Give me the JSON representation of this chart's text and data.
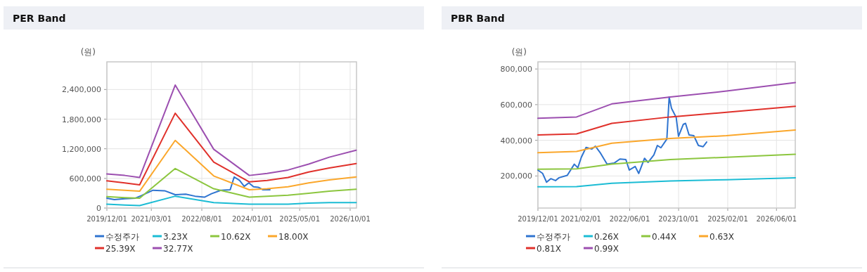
{
  "chart_data": [
    {
      "type": "line",
      "title": "PER Band",
      "ylabel": "(원)",
      "xlim": [
        "2019-12-01",
        "2026-12-05"
      ],
      "ylim": [
        0,
        2960000
      ],
      "xticks": [
        {
          "value": "2019-12-01",
          "label": "2019/12/01"
        },
        {
          "value": "2021-03-01",
          "label": "2021/03/01"
        },
        {
          "value": "2022-08-01",
          "label": "2022/08/01"
        },
        {
          "value": "2024-01-01",
          "label": "2024/01/01"
        },
        {
          "value": "2025-05-01",
          "label": "2025/05/01"
        },
        {
          "value": "2026-10-01",
          "label": "2026/10/01"
        }
      ],
      "yticks": [
        0,
        {
          "value": 600000,
          "label": "600,000"
        },
        {
          "value": 1200000,
          "label": "1,200,000"
        },
        {
          "value": 1800000,
          "label": "1,800,000"
        },
        {
          "value": 2400000,
          "label": "2,400,000"
        }
      ],
      "grid": true,
      "legend": "bottom",
      "marker": "none",
      "line_style": "solid",
      "series": [
        {
          "name": "수정주가",
          "color": "#2f74d0",
          "x": [
            "2019-12-01",
            "2020-02-16",
            "2020-06-03",
            "2020-09-19",
            "2020-11-18",
            "2021-03-18",
            "2021-07-16",
            "2021-11-01",
            "2022-02-17",
            "2022-05-24",
            "2022-08-28",
            "2022-11-08",
            "2023-02-12",
            "2023-05-19",
            "2023-06-29",
            "2023-08-23",
            "2023-10-10",
            "2023-11-27",
            "2024-01-14",
            "2024-03-02",
            "2024-04-19",
            "2024-06-30"
          ],
          "values": [
            200000,
            170000,
            190000,
            200000,
            250000,
            360000,
            350000,
            270000,
            280000,
            240000,
            220000,
            290000,
            360000,
            370000,
            630000,
            560000,
            440000,
            510000,
            430000,
            420000,
            370000,
            370000
          ]
        },
        {
          "name": "3.23X",
          "color": "#1bbcd4",
          "x": [
            "2019-12-01",
            "2020-06-01",
            "2020-11-01",
            "2021-11-01",
            "2022-12-01",
            "2023-12-01",
            "2024-06-01",
            "2025-01-01",
            "2025-08-01",
            "2026-03-01",
            "2026-12-01"
          ],
          "values": [
            80000,
            60000,
            50000,
            240000,
            110000,
            80000,
            80000,
            80000,
            100000,
            110000,
            110000
          ]
        },
        {
          "name": "10.62X",
          "color": "#8cc63f",
          "x": [
            "2019-12-01",
            "2020-06-01",
            "2020-11-01",
            "2021-11-01",
            "2022-12-01",
            "2023-12-01",
            "2024-06-01",
            "2025-01-01",
            "2025-08-01",
            "2026-03-01",
            "2026-12-01"
          ],
          "values": [
            230000,
            210000,
            200000,
            800000,
            390000,
            220000,
            240000,
            260000,
            300000,
            340000,
            380000
          ]
        },
        {
          "name": "18.00X",
          "color": "#fba72b",
          "x": [
            "2019-12-01",
            "2020-06-01",
            "2020-11-01",
            "2021-11-01",
            "2022-12-01",
            "2023-12-01",
            "2024-06-01",
            "2025-01-01",
            "2025-08-01",
            "2026-03-01",
            "2026-12-01"
          ],
          "values": [
            380000,
            360000,
            340000,
            1370000,
            650000,
            370000,
            390000,
            430000,
            510000,
            570000,
            630000
          ]
        },
        {
          "name": "25.39X",
          "color": "#e0312b",
          "x": [
            "2019-12-01",
            "2020-06-01",
            "2020-11-01",
            "2021-11-01",
            "2022-12-01",
            "2023-12-01",
            "2024-06-01",
            "2025-01-01",
            "2025-08-01",
            "2026-03-01",
            "2026-12-01"
          ],
          "values": [
            550000,
            510000,
            470000,
            1920000,
            930000,
            530000,
            560000,
            620000,
            730000,
            810000,
            900000
          ]
        },
        {
          "name": "32.77X",
          "color": "#9c4fb0",
          "x": [
            "2019-12-01",
            "2020-06-01",
            "2020-11-01",
            "2021-11-01",
            "2022-12-01",
            "2023-12-01",
            "2024-06-01",
            "2025-01-01",
            "2025-08-01",
            "2026-03-01",
            "2026-12-01"
          ],
          "values": [
            690000,
            660000,
            620000,
            2490000,
            1190000,
            660000,
            700000,
            770000,
            890000,
            1030000,
            1170000
          ]
        }
      ]
    },
    {
      "type": "line",
      "title": "PBR Band",
      "ylabel": "(원)",
      "xlim": [
        "2019-12-01",
        "2026-12-05"
      ],
      "ylim": [
        20000,
        840000
      ],
      "xticks": [
        {
          "value": "2019-12-01",
          "label": "2019/12/01"
        },
        {
          "value": "2021-02-01",
          "label": "2021/02/01"
        },
        {
          "value": "2022-06-01",
          "label": "2022/06/01"
        },
        {
          "value": "2023-10-01",
          "label": "2023/10/01"
        },
        {
          "value": "2025-02-01",
          "label": "2025/02/01"
        },
        {
          "value": "2026-06-01",
          "label": "2026/06/01"
        }
      ],
      "yticks": [
        {
          "value": 200000,
          "label": "200,000"
        },
        {
          "value": 400000,
          "label": "400,000"
        },
        {
          "value": 600000,
          "label": "600,000"
        },
        {
          "value": 800000,
          "label": "800,000"
        }
      ],
      "grid": true,
      "legend": "bottom",
      "marker": "none",
      "line_style": "solid",
      "series": [
        {
          "name": "수정주가",
          "color": "#2f74d0",
          "x": [
            "2019-12-01",
            "2020-01-17",
            "2020-02-25",
            "2020-04-07",
            "2020-05-24",
            "2020-06-28",
            "2020-09-18",
            "2020-11-27",
            "2021-01-01",
            "2021-02-05",
            "2021-03-24",
            "2021-05-21",
            "2021-06-25",
            "2021-08-11",
            "2021-10-19",
            "2021-12-28",
            "2022-02-24",
            "2022-04-24",
            "2022-05-28",
            "2022-07-26",
            "2022-08-30",
            "2022-10-27",
            "2022-12-01",
            "2023-01-28",
            "2023-03-04",
            "2023-04-08",
            "2023-06-06",
            "2023-06-29",
            "2023-07-22",
            "2023-09-07",
            "2023-09-30",
            "2023-11-16",
            "2023-12-09",
            "2024-01-13",
            "2024-02-29",
            "2024-04-15",
            "2024-06-01",
            "2024-07-06"
          ],
          "values": [
            233000,
            214000,
            165000,
            185000,
            174000,
            190000,
            203000,
            266000,
            246000,
            305000,
            360000,
            351000,
            367000,
            331000,
            266000,
            272000,
            295000,
            292000,
            233000,
            253000,
            214000,
            299000,
            276000,
            318000,
            371000,
            358000,
            407000,
            643000,
            580000,
            528000,
            423000,
            489000,
            495000,
            430000,
            426000,
            371000,
            364000,
            390000
          ]
        },
        {
          "name": "0.26X",
          "color": "#1bbcd4",
          "x": [
            "2019-12-01",
            "2020-12-20",
            "2021-12-05",
            "2023-07-10",
            "2025-01-20",
            "2026-12-05"
          ],
          "values": [
            139000,
            140000,
            159000,
            172000,
            179000,
            190000
          ]
        },
        {
          "name": "0.44X",
          "color": "#8cc63f",
          "x": [
            "2019-12-01",
            "2020-12-20",
            "2021-12-05",
            "2023-07-10",
            "2025-01-20",
            "2026-12-05"
          ],
          "values": [
            238000,
            240000,
            266000,
            292000,
            305000,
            322000
          ]
        },
        {
          "name": "0.63X",
          "color": "#fba72b",
          "x": [
            "2019-12-01",
            "2020-12-20",
            "2021-12-05",
            "2023-07-10",
            "2025-01-20",
            "2026-12-05"
          ],
          "values": [
            330000,
            337000,
            384000,
            410000,
            426000,
            458000
          ]
        },
        {
          "name": "0.81X",
          "color": "#e0312b",
          "x": [
            "2019-12-01",
            "2020-12-20",
            "2021-12-05",
            "2023-07-10",
            "2025-01-20",
            "2026-12-05"
          ],
          "values": [
            430000,
            436000,
            495000,
            531000,
            557000,
            591000
          ]
        },
        {
          "name": "0.99X",
          "color": "#9c4fb0",
          "x": [
            "2019-12-01",
            "2020-12-20",
            "2021-12-05",
            "2023-07-10",
            "2025-01-20",
            "2026-12-05"
          ],
          "values": [
            524000,
            531000,
            604000,
            643000,
            676000,
            724000
          ]
        }
      ]
    }
  ]
}
